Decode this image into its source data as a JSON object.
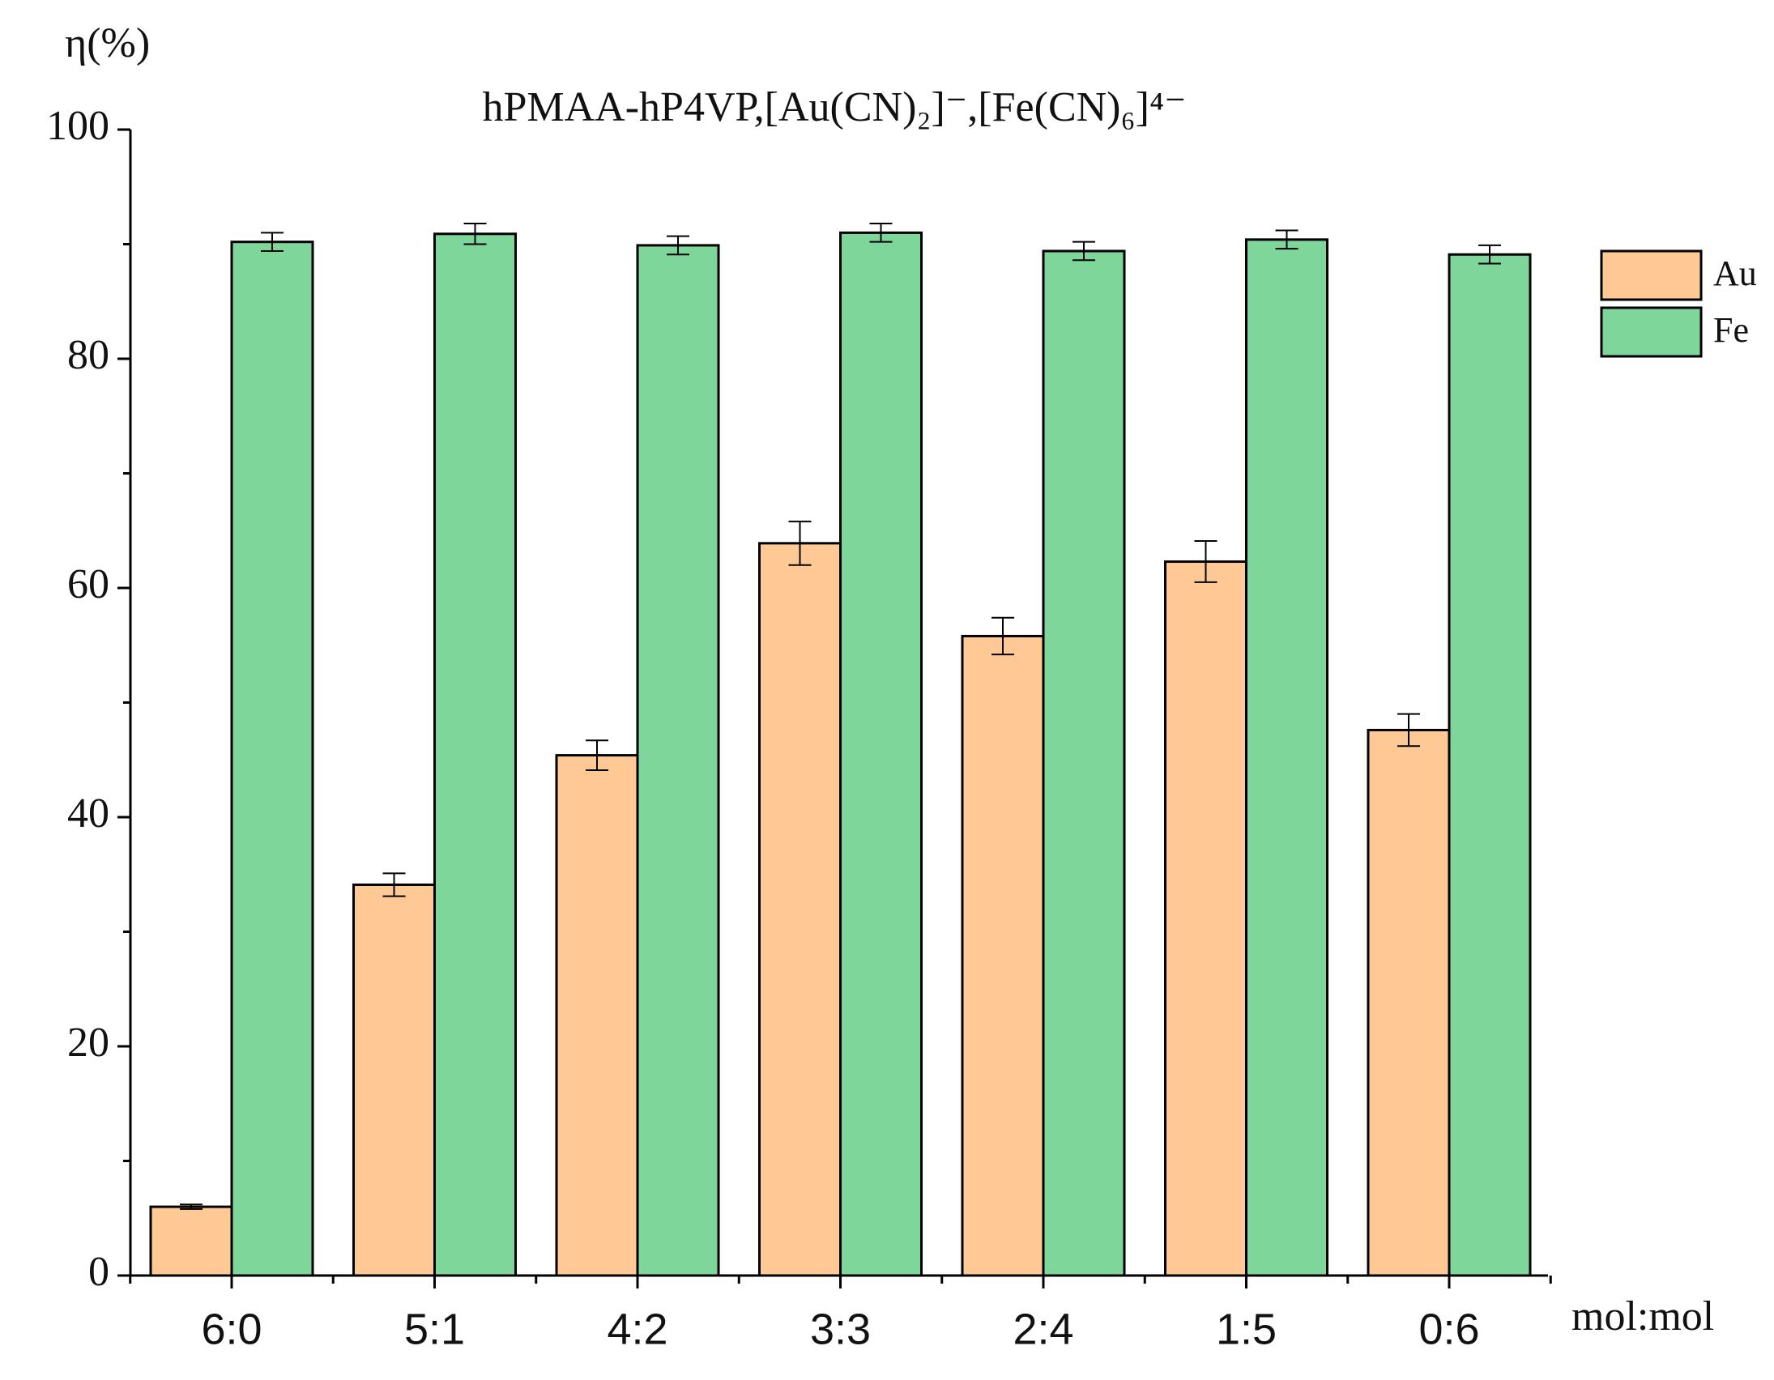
{
  "chart_data": {
    "type": "bar",
    "title": "hPMAA-hP4VP,[Au(CN)₂]⁻,[Fe(CN)₆]⁴⁻",
    "y_label": "η(%)",
    "x_label": "mol:mol",
    "categories": [
      "6:0",
      "5:1",
      "4:2",
      "3:3",
      "2:4",
      "1:5",
      "0:6"
    ],
    "series": [
      {
        "name": "Au",
        "color": "#fec994",
        "values": [
          6,
          34.1,
          45.4,
          63.9,
          55.8,
          62.3,
          47.6
        ],
        "errors": [
          0.2,
          1.0,
          1.3,
          1.9,
          1.6,
          1.8,
          1.4
        ]
      },
      {
        "name": "Fe",
        "color": "#7fd69b",
        "values": [
          90.2,
          90.9,
          89.9,
          91.0,
          89.4,
          90.4,
          89.1
        ],
        "errors": [
          0.8,
          0.9,
          0.8,
          0.8,
          0.8,
          0.8,
          0.8
        ]
      }
    ],
    "ylim": [
      0,
      100
    ],
    "yticks": [
      0,
      20,
      40,
      60,
      80,
      100
    ],
    "yminor_ticks": [
      10,
      30,
      50,
      70,
      90
    ],
    "legend": "right"
  }
}
